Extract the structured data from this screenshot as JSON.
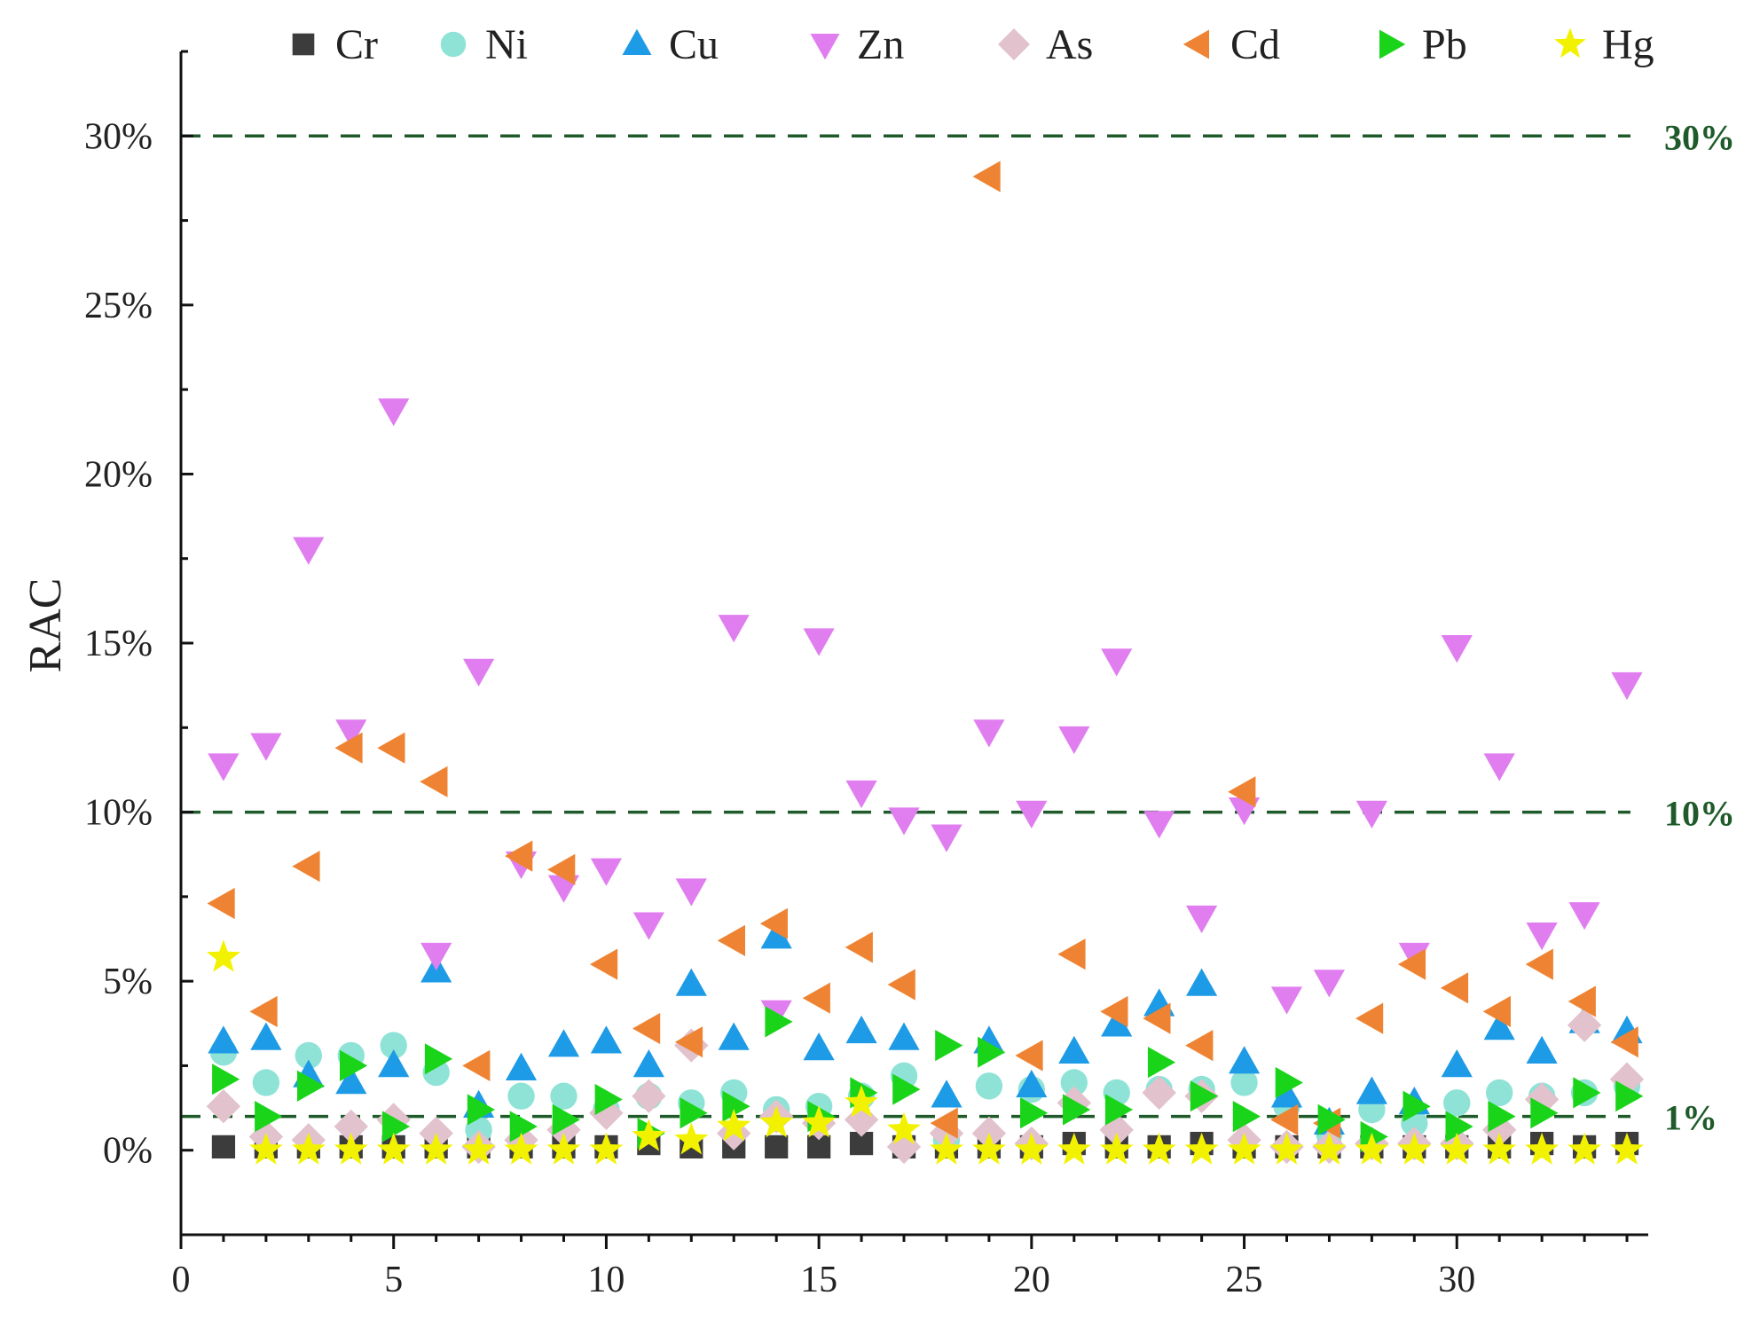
{
  "chart_data": {
    "type": "scatter",
    "title": "",
    "xlabel": "",
    "ylabel": "RAC",
    "xlim": [
      0,
      34.5
    ],
    "ylim": [
      -2.5,
      32.5
    ],
    "x_ticks": [
      0,
      5,
      10,
      15,
      20,
      25,
      30
    ],
    "x_tick_labels": [
      "0",
      "5",
      "10",
      "15",
      "20",
      "25",
      "30"
    ],
    "y_ticks": [
      0,
      5,
      10,
      15,
      20,
      25,
      30
    ],
    "y_tick_labels": [
      "0%",
      "5%",
      "10%",
      "15%",
      "20%",
      "25%",
      "30%"
    ],
    "thresholds": [
      {
        "value": 30,
        "label": "30%"
      },
      {
        "value": 10,
        "label": "10%"
      },
      {
        "value": 1,
        "label": "1%"
      }
    ],
    "threshold_color": "#1f5b2a",
    "legend_position": "top",
    "x": [
      1,
      2,
      3,
      4,
      5,
      6,
      7,
      8,
      9,
      10,
      11,
      12,
      13,
      14,
      15,
      16,
      17,
      18,
      19,
      20,
      21,
      22,
      23,
      24,
      25,
      26,
      27,
      28,
      29,
      30,
      31,
      32,
      33,
      34
    ],
    "series": [
      {
        "name": "Cr",
        "marker": "square",
        "color": "#3c3c3c",
        "values": [
          0.1,
          0.1,
          0.1,
          0.1,
          0.1,
          0.1,
          0.1,
          0.1,
          0.1,
          0.1,
          0.2,
          0.1,
          0.1,
          0.1,
          0.1,
          0.2,
          0.1,
          0.1,
          0.1,
          0.1,
          0.2,
          0.1,
          0.1,
          0.2,
          0.1,
          0.1,
          0.1,
          0.1,
          0.1,
          0.1,
          0.1,
          0.2,
          0.1,
          0.2
        ]
      },
      {
        "name": "Ni",
        "marker": "circle",
        "color": "#8ee3d6",
        "values": [
          2.9,
          2.0,
          2.8,
          2.8,
          3.1,
          2.3,
          0.6,
          1.6,
          1.6,
          1.2,
          1.6,
          1.4,
          1.7,
          1.2,
          1.3,
          1.6,
          2.2,
          0.3,
          1.9,
          1.8,
          2.0,
          1.7,
          1.8,
          1.8,
          2.0,
          1.3,
          0.5,
          1.2,
          0.8,
          1.4,
          1.7,
          1.6,
          1.7,
          1.9
        ]
      },
      {
        "name": "Cu",
        "marker": "triangle-up",
        "color": "#1e9be6",
        "values": [
          3.2,
          3.3,
          2.2,
          2.0,
          2.5,
          5.3,
          1.3,
          2.4,
          3.1,
          3.2,
          2.5,
          4.9,
          3.3,
          6.3,
          3.0,
          3.5,
          3.3,
          1.6,
          3.2,
          1.9,
          2.9,
          3.7,
          4.3,
          4.9,
          2.6,
          1.6,
          0.8,
          1.7,
          1.4,
          2.5,
          3.6,
          2.9,
          3.8,
          3.5
        ]
      },
      {
        "name": "Zn",
        "marker": "triangle-down",
        "color": "#e07ef0",
        "values": [
          11.4,
          12.0,
          17.8,
          12.4,
          21.9,
          5.8,
          14.2,
          8.5,
          7.8,
          8.3,
          6.7,
          7.7,
          15.5,
          4.1,
          15.1,
          10.6,
          9.8,
          9.3,
          12.4,
          10.0,
          12.2,
          14.5,
          9.7,
          6.9,
          10.1,
          4.5,
          5.0,
          10.0,
          5.8,
          14.9,
          11.4,
          6.4,
          7.0,
          13.8
        ]
      },
      {
        "name": "As",
        "marker": "diamond",
        "color": "#e2c2cc",
        "values": [
          1.3,
          0.4,
          0.3,
          0.7,
          0.9,
          0.5,
          0.1,
          0.3,
          0.6,
          1.1,
          1.6,
          3.1,
          0.5,
          1.0,
          0.8,
          0.9,
          0.1,
          0.5,
          0.5,
          0.2,
          1.4,
          0.6,
          1.7,
          1.6,
          0.3,
          0.1,
          0.1,
          0.2,
          0.2,
          0.2,
          0.6,
          1.5,
          3.7,
          2.1
        ]
      },
      {
        "name": "Cd",
        "marker": "triangle-left",
        "color": "#ee8433",
        "values": [
          7.3,
          4.1,
          8.4,
          11.9,
          11.9,
          10.9,
          2.5,
          8.7,
          8.3,
          5.5,
          3.6,
          3.2,
          6.2,
          6.7,
          4.5,
          6.0,
          4.9,
          0.8,
          28.8,
          2.8,
          5.8,
          4.1,
          3.9,
          3.1,
          10.6,
          0.9,
          0.8,
          3.9,
          5.5,
          4.8,
          4.1,
          5.5,
          4.4,
          3.2
        ]
      },
      {
        "name": "Pb",
        "marker": "triangle-right",
        "color": "#1ad41a",
        "values": [
          2.1,
          1.0,
          1.9,
          2.5,
          0.7,
          2.7,
          1.2,
          0.7,
          0.9,
          1.5,
          0.5,
          1.1,
          1.3,
          3.8,
          1.0,
          1.7,
          1.8,
          3.1,
          2.9,
          1.1,
          1.2,
          1.2,
          2.6,
          1.6,
          1.0,
          2.0,
          0.9,
          0.4,
          1.3,
          0.7,
          1.0,
          1.1,
          1.7,
          1.6
        ]
      },
      {
        "name": "Hg",
        "marker": "star",
        "color": "#f2f200",
        "values": [
          5.7,
          0.0,
          0.0,
          0.0,
          0.0,
          0.0,
          0.0,
          0.0,
          0.0,
          0.0,
          0.4,
          0.3,
          0.7,
          0.8,
          0.8,
          1.4,
          0.6,
          0.0,
          0.0,
          0.0,
          0.0,
          0.0,
          0.0,
          0.0,
          0.0,
          0.0,
          0.0,
          0.0,
          0.0,
          0.0,
          0.0,
          0.0,
          0.0,
          0.0
        ]
      }
    ]
  }
}
